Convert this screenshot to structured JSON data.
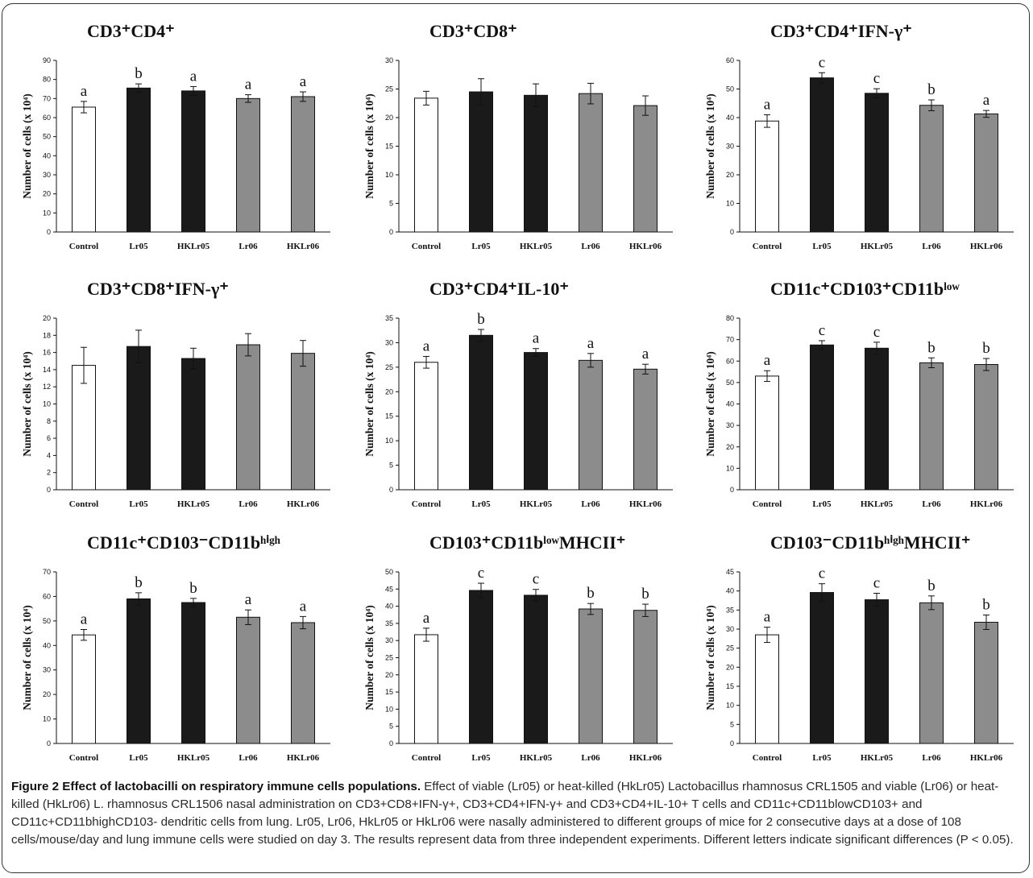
{
  "caption": {
    "title": "Figure 2 Effect of lactobacilli on respiratory immune cells populations.",
    "text": "Effect of viable (Lr05) or heat-killed (HkLr05) Lactobacillus rhamnosus CRL1505 and viable (Lr06) or heat-killed (HkLr06) L. rhamnosus CRL1506 nasal administration on CD3+CD8+IFN-γ+, CD3+CD4+IFN-γ+ and CD3+CD4+IL-10+ T cells and CD11c+CD11blowCD103+ and CD11c+CD11bhighCD103- dendritic cells from lung. Lr05, Lr06, HkLr05 or HkLr06 were nasally administered to different groups of mice for 2 consecutive days at a dose of 108 cells/mouse/day and lung immune cells were studied on day 3. The results represent data from three independent experiments. Different letters indicate significant differences (P < 0.05)."
  },
  "colors": {
    "Control": "#ffffff",
    "Lr05": "#1a1a1a",
    "HKLr05": "#1a1a1a",
    "Lr06": "#8c8c8c",
    "HKLr06": "#8c8c8c"
  },
  "chart_data": [
    {
      "type": "bar",
      "title": "CD3⁺CD4⁺",
      "ylabel": "Number of cells (x 10⁴)",
      "categories": [
        "Control",
        "Lr05",
        "HKLr05",
        "Lr06",
        "HKLr06"
      ],
      "values": [
        65.5,
        75.5,
        74,
        70,
        71
      ],
      "errors": [
        3,
        2.2,
        2.3,
        2,
        2.5
      ],
      "letters": [
        "a",
        "b",
        "a",
        "a",
        "a"
      ],
      "ylim": [
        0,
        90
      ],
      "ystep": 10
    },
    {
      "type": "bar",
      "title": "CD3⁺CD8⁺",
      "ylabel": "Number of cells (x 10⁴)",
      "categories": [
        "Control",
        "Lr05",
        "HKLr05",
        "Lr06",
        "HKLr06"
      ],
      "values": [
        23.4,
        24.5,
        23.9,
        24.2,
        22.1
      ],
      "errors": [
        1.2,
        2.3,
        2,
        1.8,
        1.7
      ],
      "letters": [
        "",
        "",
        "",
        "",
        ""
      ],
      "ylim": [
        0,
        30
      ],
      "ystep": 5
    },
    {
      "type": "bar",
      "title": "CD3⁺CD4⁺IFN-γ⁺",
      "ylabel": "Number of cells (x 10⁴)",
      "categories": [
        "Control",
        "Lr05",
        "HKLr05",
        "Lr06",
        "HKLr06"
      ],
      "values": [
        38.8,
        53.9,
        48.5,
        44.3,
        41.3
      ],
      "errors": [
        2.2,
        1.8,
        1.6,
        1.9,
        1.2
      ],
      "letters": [
        "a",
        "c",
        "c",
        "b",
        "a"
      ],
      "ylim": [
        0,
        60
      ],
      "ystep": 10
    },
    {
      "type": "bar",
      "title": "CD3⁺CD8⁺IFN-γ⁺",
      "ylabel": "Number of cells (x 10⁴)",
      "categories": [
        "Control",
        "Lr05",
        "HKLr05",
        "Lr06",
        "HKLr06"
      ],
      "values": [
        14.5,
        16.7,
        15.3,
        16.9,
        15.9
      ],
      "errors": [
        2.1,
        1.9,
        1.2,
        1.3,
        1.5
      ],
      "letters": [
        "",
        "",
        "",
        "",
        ""
      ],
      "ylim": [
        0,
        20
      ],
      "ystep": 2
    },
    {
      "type": "bar",
      "title": "CD3⁺CD4⁺IL-10⁺",
      "ylabel": "Number of cells (x 10⁴)",
      "categories": [
        "Control",
        "Lr05",
        "HKLr05",
        "Lr06",
        "HKLr06"
      ],
      "values": [
        26,
        31.5,
        28,
        26.4,
        24.6
      ],
      "errors": [
        1.2,
        1.2,
        0.8,
        1.4,
        1
      ],
      "letters": [
        "a",
        "b",
        "a",
        "a",
        "a"
      ],
      "ylim": [
        0,
        35
      ],
      "ystep": 5
    },
    {
      "type": "bar",
      "title": "CD11c⁺CD103⁺CD11bˡᵒʷ",
      "ylabel": "Number of cells (x 10⁴)",
      "categories": [
        "Control",
        "Lr05",
        "HKLr05",
        "Lr06",
        "HKLr06"
      ],
      "values": [
        53,
        67.5,
        66,
        59.2,
        58.4
      ],
      "errors": [
        2.5,
        2,
        2.8,
        2.3,
        2.8
      ],
      "letters": [
        "a",
        "c",
        "c",
        "b",
        "b"
      ],
      "ylim": [
        0,
        80
      ],
      "ystep": 10
    },
    {
      "type": "bar",
      "title": "CD11c⁺CD103⁻CD11bʰⁱᵍʰ",
      "ylabel": "Number of cells (x 10⁴)",
      "categories": [
        "Control",
        "Lr05",
        "HKLr05",
        "Lr06",
        "HKLr06"
      ],
      "values": [
        44.3,
        59,
        57.5,
        51.5,
        49.3
      ],
      "errors": [
        2.2,
        2.5,
        1.7,
        3,
        2.5
      ],
      "letters": [
        "a",
        "b",
        "b",
        "a",
        "a"
      ],
      "ylim": [
        0,
        70
      ],
      "ystep": 10
    },
    {
      "type": "bar",
      "title": "CD103⁺CD11bˡᵒʷMHCII⁺",
      "ylabel": "Number of cells (x 10⁴)",
      "categories": [
        "Control",
        "Lr05",
        "HKLr05",
        "Lr06",
        "HKLr06"
      ],
      "values": [
        31.7,
        44.6,
        43.2,
        39.2,
        38.8
      ],
      "errors": [
        1.9,
        2.1,
        1.7,
        1.6,
        1.8
      ],
      "letters": [
        "a",
        "c",
        "c",
        "b",
        "b"
      ],
      "ylim": [
        0,
        50
      ],
      "ystep": 5
    },
    {
      "type": "bar",
      "title": "CD103⁻CD11bʰⁱᵍʰMHCII⁺",
      "ylabel": "Number of cells (x 10⁴)",
      "categories": [
        "Control",
        "Lr05",
        "HKLr05",
        "Lr06",
        "HKLr06"
      ],
      "values": [
        28.5,
        39.6,
        37.7,
        36.9,
        31.8
      ],
      "errors": [
        2,
        2.3,
        1.7,
        1.8,
        1.9
      ],
      "letters": [
        "a",
        "c",
        "c",
        "b",
        "b"
      ],
      "ylim": [
        0,
        45
      ],
      "ystep": 5
    }
  ]
}
